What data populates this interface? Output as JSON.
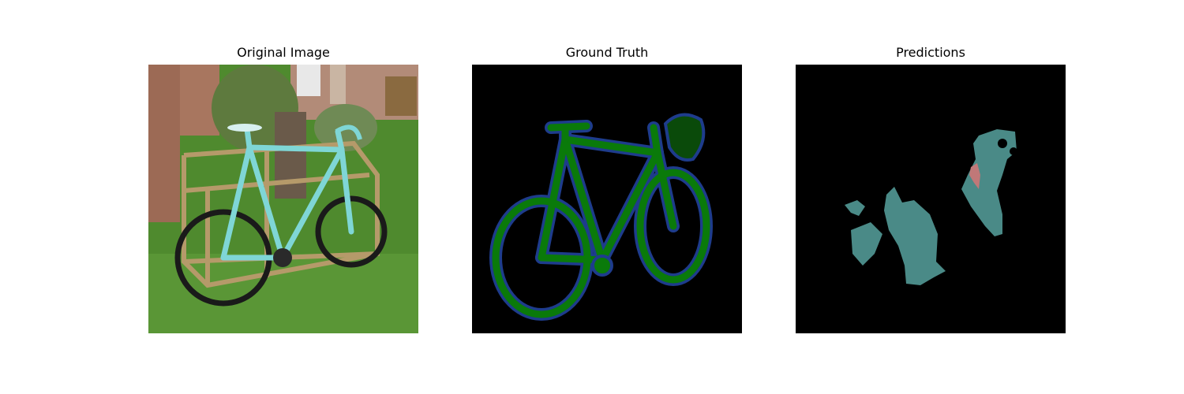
{
  "figure": {
    "panels": [
      {
        "title": "Original Image",
        "content": "photo",
        "subject": "bicycle"
      },
      {
        "title": "Ground Truth",
        "content": "segmentation-mask"
      },
      {
        "title": "Predictions",
        "content": "segmentation-mask"
      }
    ]
  },
  "colors": {
    "background": "#ffffff",
    "mask_background": "#000000",
    "gt_fill": "#0a7a0a",
    "gt_outline": "#1e3c8c",
    "gt_dark_region": "#0a4a0a",
    "pred_main": "#4a8a87",
    "pred_accent": "#c07878",
    "grass": "#4f8a2e",
    "brick": "#9c6a55",
    "frame_cyan": "#7fd6d6"
  }
}
